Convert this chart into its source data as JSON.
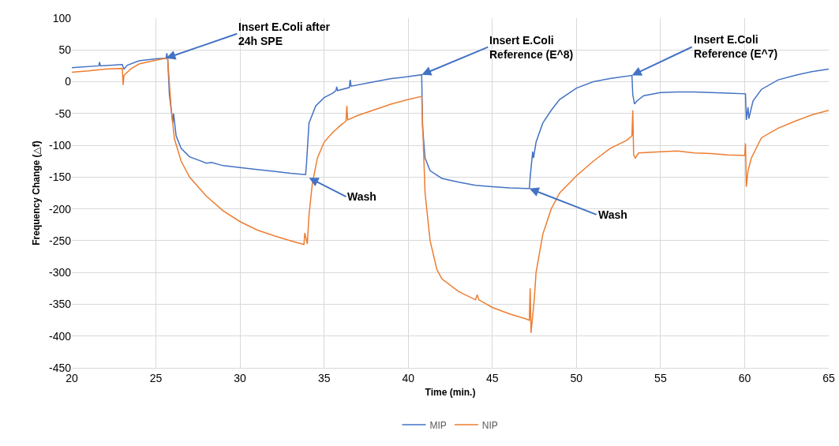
{
  "chart_data": {
    "type": "line",
    "xlabel": "Time (min.)",
    "ylabel": "Frequency Change (△f)",
    "xlim": [
      20,
      65
    ],
    "xticks": [
      20,
      25,
      30,
      35,
      40,
      45,
      50,
      55,
      60,
      65
    ],
    "ylim": [
      -450,
      100
    ],
    "yticks": [
      -450,
      -400,
      -350,
      -300,
      -250,
      -200,
      -150,
      -100,
      -50,
      0,
      50,
      100
    ],
    "grid": true,
    "legend": "bottom",
    "marker": "none",
    "line_style": "solid",
    "annotations": [
      {
        "text": "Insert E.Coli after\n24h SPE",
        "x": 25.6,
        "y": 37
      },
      {
        "text": "Wash",
        "x": 34.1,
        "y": -151
      },
      {
        "text": "Insert E.Coli\nReference (E^8)",
        "x": 40.8,
        "y": 11
      },
      {
        "text": "Wash",
        "x": 47.2,
        "y": -168
      },
      {
        "text": "Insert E.Coli\nReference (E^7)",
        "x": 53.3,
        "y": 10
      }
    ],
    "series": [
      {
        "name": "MIP",
        "color": "#4472c4",
        "x": [
          20,
          21.6,
          21.65,
          21.7,
          23.0,
          23.1,
          23.3,
          24,
          25,
          25.6,
          25.65,
          25.7,
          25.8,
          26.0,
          26.05,
          26.2,
          26.5,
          27,
          28,
          28.3,
          29,
          30,
          31,
          32,
          33,
          33.9,
          33.95,
          34.1,
          34.5,
          35,
          35.5,
          35.7,
          35.75,
          35.8,
          36.5,
          36.55,
          36.6,
          38,
          39,
          40,
          40.8,
          40.85,
          41,
          41.3,
          42,
          43,
          44,
          45,
          46,
          47,
          47.2,
          47.25,
          47.4,
          47.45,
          47.6,
          48,
          48.5,
          49,
          50,
          51,
          52,
          53.3,
          53.35,
          53.45,
          53.6,
          54,
          55,
          56,
          57,
          58,
          59,
          60.05,
          60.1,
          60.2,
          60.25,
          60.5,
          61,
          62,
          63,
          64,
          65
        ],
        "values": [
          22,
          25,
          31,
          25,
          27,
          20,
          26,
          33,
          36,
          37,
          45,
          36,
          -20,
          -65,
          -50,
          -85,
          -105,
          -118,
          -128,
          -127,
          -132,
          -135,
          -138,
          -141,
          -144,
          -146,
          -130,
          -65,
          -38,
          -25,
          -18,
          -14,
          -8,
          -14,
          -9,
          3,
          -7,
          0,
          5,
          8,
          11,
          -70,
          -120,
          -140,
          -152,
          -158,
          -163,
          -165,
          -167,
          -168,
          -168,
          -150,
          -110,
          -120,
          -95,
          -65,
          -45,
          -28,
          -10,
          0,
          5,
          10,
          -20,
          -35,
          -30,
          -22,
          -17,
          -16,
          -16,
          -17,
          -18,
          -19,
          -60,
          -40,
          -58,
          -30,
          -12,
          3,
          10,
          16,
          20
        ]
      },
      {
        "name": "NIP",
        "color": "#ed7d31",
        "x": [
          20,
          21,
          22,
          23,
          23.05,
          23.1,
          23.5,
          24,
          25,
          25.6,
          25.7,
          25.9,
          26.1,
          26.5,
          27,
          28,
          29,
          30,
          31,
          32,
          33,
          33.8,
          33.85,
          34,
          34.1,
          34.3,
          34.6,
          35,
          35.5,
          36,
          36.3,
          36.35,
          36.4,
          37,
          38,
          39,
          40,
          40.8,
          40.9,
          41,
          41.3,
          41.7,
          42,
          43,
          44,
          44.1,
          44.2,
          45,
          46,
          47,
          47.2,
          47.25,
          47.3,
          47.5,
          47.6,
          48,
          48.5,
          49,
          50,
          51,
          52,
          53,
          53.3,
          53.35,
          53.4,
          53.5,
          53.7,
          55,
          56,
          57,
          58,
          59,
          60,
          60.05,
          60.1,
          60.2,
          60.4,
          61,
          62,
          63,
          64,
          65
        ],
        "values": [
          15,
          17,
          20,
          21,
          -5,
          10,
          20,
          28,
          34,
          37,
          36,
          -40,
          -90,
          -125,
          -150,
          -180,
          -203,
          -220,
          -233,
          -242,
          -250,
          -256,
          -238,
          -255,
          -210,
          -160,
          -120,
          -95,
          -80,
          -68,
          -62,
          -38,
          -60,
          -53,
          -44,
          -35,
          -28,
          -23,
          -100,
          -175,
          -250,
          -295,
          -310,
          -330,
          -343,
          -335,
          -343,
          -355,
          -365,
          -373,
          -375,
          -325,
          -395,
          -340,
          -300,
          -240,
          -200,
          -175,
          -148,
          -125,
          -105,
          -92,
          -85,
          -45,
          -115,
          -120,
          -112,
          -110,
          -109,
          -112,
          -113,
          -115,
          -116,
          -97,
          -165,
          -140,
          -120,
          -88,
          -73,
          -62,
          -52,
          -45
        ]
      }
    ]
  }
}
